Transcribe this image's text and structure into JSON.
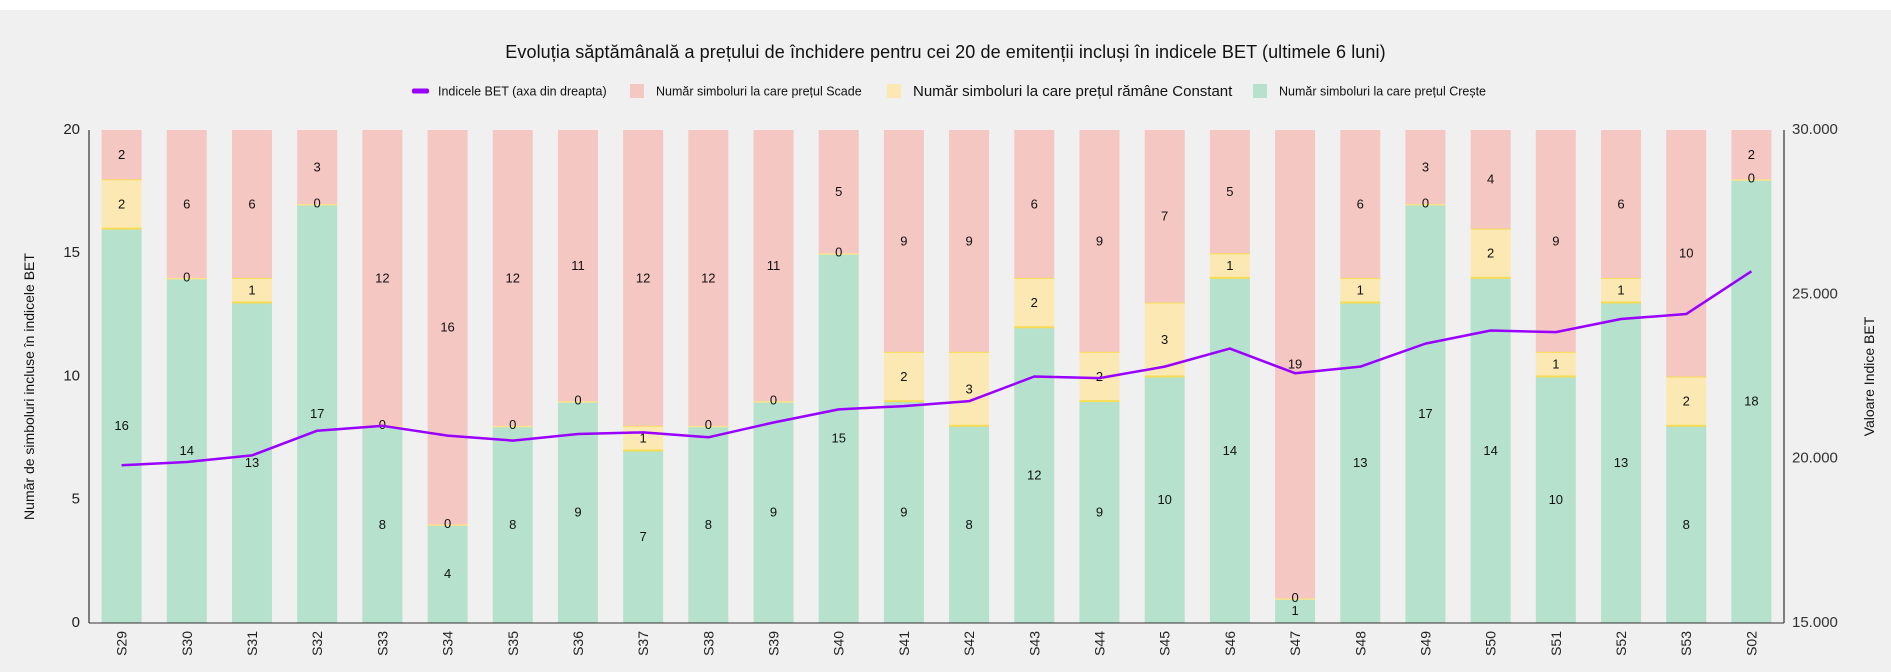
{
  "chart_data": {
    "type": "bar",
    "stacked": true,
    "title": "Evoluția săptămânală a prețului de închidere pentru cei 20 de emitenții incluși în indicele BET (ultimele 6 luni)",
    "categories": [
      "S29",
      "S30",
      "S31",
      "S32",
      "S33",
      "S34",
      "S35",
      "S36",
      "S37",
      "S38",
      "S39",
      "S40",
      "S41",
      "S42",
      "S43",
      "S44",
      "S45",
      "S46",
      "S47",
      "S48",
      "S49",
      "S50",
      "S51",
      "S52",
      "S53",
      "S02"
    ],
    "series": [
      {
        "name": "Număr simboluri la care prețul Crește",
        "color": "#b6e1cd",
        "values": [
          16,
          14,
          13,
          17,
          8,
          4,
          8,
          9,
          7,
          8,
          9,
          15,
          9,
          8,
          12,
          9,
          10,
          14,
          1,
          13,
          17,
          14,
          10,
          13,
          8,
          18
        ]
      },
      {
        "name": "Număr simboluri la care prețul rămâne Constant",
        "color": "#fce8b2",
        "values": [
          2,
          0,
          1,
          0,
          0,
          0,
          0,
          0,
          1,
          0,
          0,
          0,
          2,
          3,
          2,
          2,
          3,
          1,
          0,
          1,
          0,
          2,
          1,
          1,
          2,
          0
        ]
      },
      {
        "name": "Număr simboluri la care prețul Scade",
        "color": "#f4c7c3",
        "values": [
          2,
          6,
          6,
          3,
          12,
          16,
          12,
          11,
          12,
          12,
          11,
          5,
          9,
          9,
          6,
          9,
          7,
          5,
          19,
          6,
          3,
          4,
          9,
          6,
          10,
          2
        ]
      }
    ],
    "line_series": {
      "name": "Indicele BET (axa din dreapta)",
      "color": "#9900ff",
      "values": [
        19800,
        19900,
        20100,
        20850,
        21000,
        20700,
        20550,
        20750,
        20800,
        20650,
        21100,
        21500,
        21600,
        21750,
        22500,
        22450,
        22800,
        23350,
        22600,
        22800,
        23500,
        23900,
        23850,
        24250,
        24400,
        25700
      ]
    },
    "legend": [
      {
        "label": "Indicele BET (axa din dreapta)",
        "type": "line",
        "color": "#9900ff"
      },
      {
        "label": "Număr simboluri la care prețul Scade",
        "type": "box",
        "color": "#f4c7c3"
      },
      {
        "label": "Număr simboluri la care prețul rămâne Constant",
        "type": "box",
        "color": "#fce8b2"
      },
      {
        "label": "Număr simboluri la care prețul Crește",
        "type": "box",
        "color": "#b6e1cd"
      }
    ],
    "ylabel": "Număr de simboluri incluse în indicele BET",
    "y2label": "Valoare Indice BET",
    "ylim": [
      0,
      20
    ],
    "y2lim": [
      15000,
      30000
    ],
    "yticks": [
      "0",
      "5",
      "10",
      "15",
      "20"
    ],
    "y2ticks": [
      "15.000",
      "20.000",
      "25.000",
      "30.000"
    ],
    "legend_position": "top-center"
  }
}
